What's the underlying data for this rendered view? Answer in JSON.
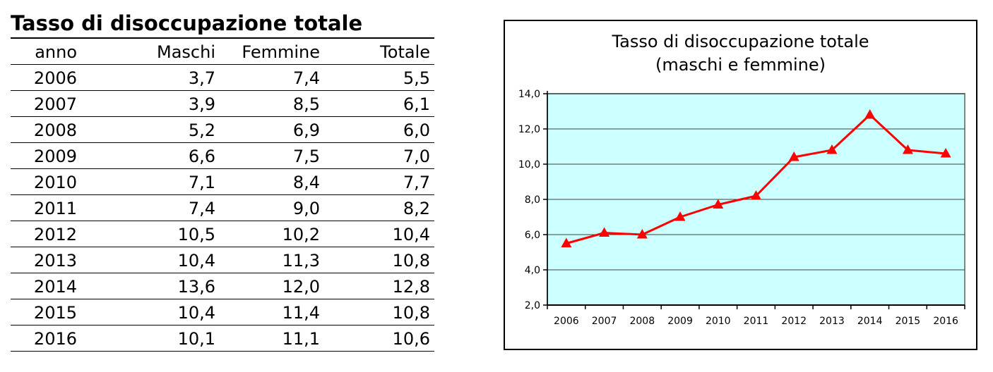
{
  "table": {
    "title": "Tasso di disoccupazione totale",
    "headers": [
      "anno",
      "Maschi",
      "Femmine",
      "Totale"
    ],
    "rows": [
      [
        "2006",
        "3,7",
        "7,4",
        "5,5"
      ],
      [
        "2007",
        "3,9",
        "8,5",
        "6,1"
      ],
      [
        "2008",
        "5,2",
        "6,9",
        "6,0"
      ],
      [
        "2009",
        "6,6",
        "7,5",
        "7,0"
      ],
      [
        "2010",
        "7,1",
        "8,4",
        "7,7"
      ],
      [
        "2011",
        "7,4",
        "9,0",
        "8,2"
      ],
      [
        "2012",
        "10,5",
        "10,2",
        "10,4"
      ],
      [
        "2013",
        "10,4",
        "11,3",
        "10,8"
      ],
      [
        "2014",
        "13,6",
        "12,0",
        "12,8"
      ],
      [
        "2015",
        "10,4",
        "11,4",
        "10,8"
      ],
      [
        "2016",
        "10,1",
        "11,1",
        "10,6"
      ]
    ]
  },
  "chart_data": {
    "type": "line",
    "title": "Tasso di disoccupazione totale",
    "subtitle": "(maschi e femmine)",
    "categories": [
      "2006",
      "2007",
      "2008",
      "2009",
      "2010",
      "2011",
      "2012",
      "2013",
      "2014",
      "2015",
      "2016"
    ],
    "values": [
      5.5,
      6.1,
      6.0,
      7.0,
      7.7,
      8.2,
      10.4,
      10.8,
      12.8,
      10.8,
      10.6
    ],
    "xlabel": "",
    "ylabel": "",
    "ylim": [
      2.0,
      14.0
    ],
    "ytick_step": 2.0,
    "ytick_labels": [
      "2,0",
      "4,0",
      "6,0",
      "8,0",
      "10,0",
      "12,0",
      "14,0"
    ],
    "grid": true,
    "legend": "none",
    "marker": "triangle",
    "colors": {
      "line": "#FF0000",
      "marker": "#FF0000",
      "plot_bg": "#CCFFFF",
      "grid": "#404040",
      "plot_border": "#848484",
      "axis": "#000000",
      "frame_border": "#000000"
    }
  }
}
